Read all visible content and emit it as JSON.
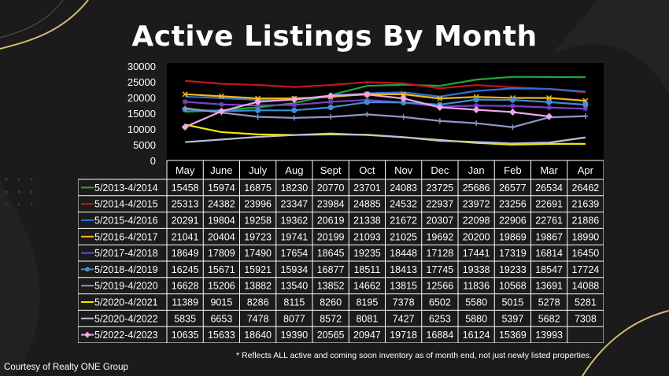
{
  "slide": {
    "title": "Active Listings By Month",
    "footnote": "* Reflects ALL active and coming soon inventory as of month end, not just newly listed properties.",
    "credit": "Courtesy of Realty ONE Group"
  },
  "chart_data": {
    "type": "line",
    "title": "Active Listings By Month",
    "categories": [
      "May",
      "June",
      "July",
      "Aug",
      "Sept",
      "Oct",
      "Nov",
      "Dec",
      "Jan",
      "Feb",
      "Mar",
      "Apr"
    ],
    "ylim": [
      0,
      30000
    ],
    "yticks": [
      "0",
      "5000",
      "10000",
      "15000",
      "20000",
      "25000",
      "30000"
    ],
    "grid": false,
    "legend": "table-rows",
    "series": [
      {
        "name": "5/2013-4/2014",
        "color": "#1fa83a",
        "marker": "none",
        "values": [
          15458,
          15974,
          16875,
          18230,
          20770,
          23701,
          24083,
          23725,
          25686,
          26577,
          26534,
          26462
        ]
      },
      {
        "name": "5/2014-4/2015",
        "color": "#c0161d",
        "marker": "none",
        "values": [
          25313,
          24382,
          23996,
          23347,
          23984,
          24885,
          24532,
          22937,
          23972,
          23256,
          22691,
          21639
        ]
      },
      {
        "name": "5/2015-4/2016",
        "color": "#2f6fd6",
        "marker": "none",
        "values": [
          20291,
          19804,
          19258,
          19362,
          20619,
          21338,
          21672,
          20307,
          22098,
          22906,
          22761,
          21886
        ]
      },
      {
        "name": "5/2016-4/2017",
        "color": "#f5b915",
        "marker": "x",
        "values": [
          21041,
          20404,
          19723,
          19741,
          20199,
          21093,
          21025,
          19692,
          20200,
          19869,
          19867,
          18990
        ]
      },
      {
        "name": "5/2017-4/2018",
        "color": "#7a42c9",
        "marker": "star",
        "values": [
          18649,
          17809,
          17490,
          17654,
          18645,
          19235,
          18448,
          17128,
          17441,
          17319,
          16814,
          16450
        ]
      },
      {
        "name": "5/2018-4/2019",
        "color": "#3d8fd4",
        "marker": "circle",
        "values": [
          16245,
          15671,
          15921,
          15934,
          16877,
          18511,
          18413,
          17745,
          19338,
          19233,
          18547,
          17724
        ]
      },
      {
        "name": "5/2019-4/2020",
        "color": "#8d97c8",
        "marker": "plus",
        "values": [
          16628,
          15206,
          13882,
          13540,
          13852,
          14662,
          13815,
          12566,
          11836,
          10568,
          13691,
          14088
        ]
      },
      {
        "name": "5/2020-4/2021",
        "color": "#f2e600",
        "marker": "none",
        "values": [
          11389,
          9015,
          8286,
          8115,
          8260,
          8195,
          7378,
          6502,
          5580,
          5015,
          5278,
          5281
        ]
      },
      {
        "name": "5/2020-4/2022",
        "color": "#b6c3da",
        "marker": "none",
        "values": [
          5835,
          6653,
          7478,
          8077,
          8572,
          8081,
          7427,
          6253,
          5880,
          5397,
          5682,
          7308
        ]
      },
      {
        "name": "5/2022-4/2023",
        "color": "#f0a6e8",
        "marker": "diamond",
        "values": [
          10635,
          15633,
          18640,
          19390,
          20565,
          20947,
          19718,
          16884,
          16124,
          15369,
          13993,
          null
        ]
      }
    ]
  }
}
